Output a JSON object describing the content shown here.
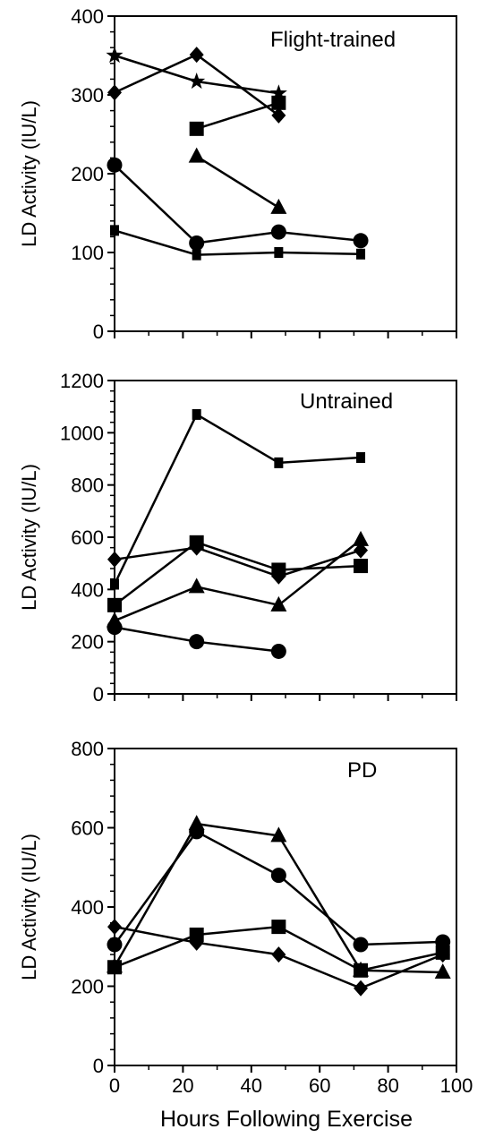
{
  "xlabel": "Hours Following Exercise",
  "chart_data": [
    {
      "type": "line",
      "title": "Flight-trained",
      "xlabel": "",
      "ylabel": "LD Activity (IU/L)",
      "xlim": [
        0,
        100
      ],
      "ylim": [
        0,
        400
      ],
      "yticks": [
        0,
        100,
        200,
        300,
        400
      ],
      "series": [
        {
          "marker": "star",
          "x": [
            0,
            24,
            48
          ],
          "y": [
            350,
            317,
            302
          ]
        },
        {
          "marker": "diamond",
          "x": [
            0,
            24,
            48
          ],
          "y": [
            303,
            351,
            274
          ]
        },
        {
          "marker": "square",
          "x": [
            24,
            48
          ],
          "y": [
            257,
            290
          ]
        },
        {
          "marker": "triangle",
          "x": [
            24,
            48
          ],
          "y": [
            222,
            157
          ]
        },
        {
          "marker": "circle",
          "x": [
            0,
            24,
            48,
            72
          ],
          "y": [
            211,
            112,
            126,
            115
          ]
        },
        {
          "marker": "small-square",
          "x": [
            0,
            24,
            48,
            72
          ],
          "y": [
            128,
            97,
            100,
            98
          ]
        }
      ]
    },
    {
      "type": "line",
      "title": "Untrained",
      "xlabel": "",
      "ylabel": "LD Activity (IU/L)",
      "xlim": [
        0,
        100
      ],
      "ylim": [
        0,
        1200
      ],
      "yticks": [
        0,
        200,
        400,
        600,
        800,
        1000,
        1200
      ],
      "series": [
        {
          "marker": "small-square",
          "x": [
            0,
            24,
            48,
            72
          ],
          "y": [
            420,
            1070,
            885,
            905
          ]
        },
        {
          "marker": "diamond",
          "x": [
            0,
            24,
            48,
            72
          ],
          "y": [
            515,
            560,
            450,
            550
          ]
        },
        {
          "marker": "square",
          "x": [
            0,
            24,
            48,
            72
          ],
          "y": [
            340,
            580,
            475,
            490
          ]
        },
        {
          "marker": "triangle",
          "x": [
            0,
            24,
            48,
            72
          ],
          "y": [
            280,
            410,
            340,
            590
          ]
        },
        {
          "marker": "circle",
          "x": [
            0,
            24,
            48
          ],
          "y": [
            255,
            200,
            163
          ]
        }
      ]
    },
    {
      "type": "line",
      "title": "PD",
      "xlabel": "Hours Following Exercise",
      "ylabel": "LD Activity (IU/L)",
      "xlim": [
        0,
        100
      ],
      "ylim": [
        0,
        800
      ],
      "xticks": [
        0,
        20,
        40,
        60,
        80,
        100
      ],
      "yticks": [
        0,
        200,
        400,
        600,
        800
      ],
      "series": [
        {
          "marker": "triangle",
          "x": [
            0,
            24,
            48,
            72,
            96
          ],
          "y": [
            250,
            610,
            580,
            240,
            235
          ]
        },
        {
          "marker": "circle",
          "x": [
            0,
            24,
            48,
            72,
            96
          ],
          "y": [
            305,
            590,
            480,
            305,
            312
          ]
        },
        {
          "marker": "square",
          "x": [
            0,
            24,
            48,
            72,
            96
          ],
          "y": [
            248,
            330,
            350,
            240,
            285
          ]
        },
        {
          "marker": "diamond",
          "x": [
            0,
            24,
            48,
            72,
            96
          ],
          "y": [
            350,
            310,
            280,
            195,
            280
          ]
        }
      ]
    }
  ]
}
